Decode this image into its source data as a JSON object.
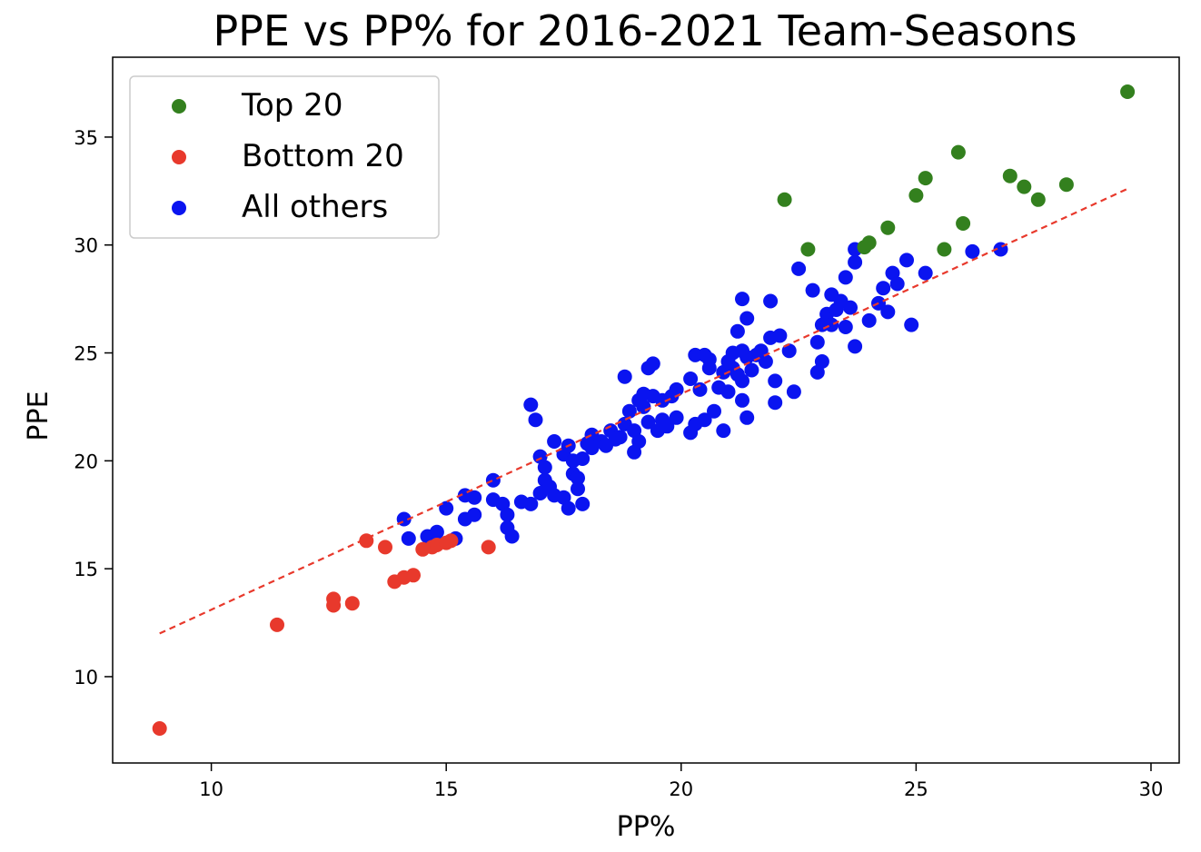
{
  "chart_data": {
    "type": "scatter",
    "title": "PPE vs PP% for 2016-2021 Team-Seasons",
    "xlabel": "PP%",
    "ylabel": "PPE",
    "xlim": [
      7.9,
      30.6
    ],
    "ylim": [
      6.0,
      38.7
    ],
    "xticks": [
      10,
      15,
      20,
      25,
      30
    ],
    "yticks": [
      10,
      15,
      20,
      25,
      30,
      35
    ],
    "grid": false,
    "legend_position": "top-left",
    "series": [
      {
        "name": "Top 20",
        "color": "#33801e",
        "points": [
          [
            22.2,
            32.1
          ],
          [
            22.7,
            29.8
          ],
          [
            23.9,
            29.9
          ],
          [
            24.0,
            30.1
          ],
          [
            24.4,
            30.8
          ],
          [
            25.0,
            32.3
          ],
          [
            25.2,
            33.1
          ],
          [
            25.6,
            29.8
          ],
          [
            25.9,
            34.3
          ],
          [
            26.0,
            31.0
          ],
          [
            27.0,
            33.2
          ],
          [
            27.3,
            32.7
          ],
          [
            27.6,
            32.1
          ],
          [
            28.2,
            32.8
          ],
          [
            29.5,
            37.1
          ]
        ]
      },
      {
        "name": "Bottom 20",
        "color": "#e8392c",
        "points": [
          [
            8.9,
            7.6
          ],
          [
            11.4,
            12.4
          ],
          [
            12.6,
            13.6
          ],
          [
            12.6,
            13.3
          ],
          [
            13.0,
            13.4
          ],
          [
            13.3,
            16.3
          ],
          [
            13.7,
            16.0
          ],
          [
            13.9,
            14.4
          ],
          [
            14.1,
            14.6
          ],
          [
            14.3,
            14.7
          ],
          [
            14.5,
            15.9
          ],
          [
            14.7,
            16.0
          ],
          [
            14.8,
            16.1
          ],
          [
            15.0,
            16.2
          ],
          [
            15.1,
            16.3
          ],
          [
            15.9,
            16.0
          ]
        ]
      },
      {
        "name": "All others",
        "color": "#0a14f0",
        "points": [
          [
            14.1,
            17.3
          ],
          [
            14.2,
            16.4
          ],
          [
            14.6,
            16.5
          ],
          [
            14.8,
            16.7
          ],
          [
            15.0,
            17.8
          ],
          [
            15.2,
            16.4
          ],
          [
            15.4,
            17.3
          ],
          [
            15.4,
            18.4
          ],
          [
            15.6,
            17.5
          ],
          [
            15.6,
            18.3
          ],
          [
            16.0,
            19.1
          ],
          [
            16.0,
            18.2
          ],
          [
            16.2,
            18.0
          ],
          [
            16.3,
            17.5
          ],
          [
            16.3,
            16.9
          ],
          [
            16.4,
            16.5
          ],
          [
            16.6,
            18.1
          ],
          [
            16.8,
            18.0
          ],
          [
            16.8,
            22.6
          ],
          [
            16.9,
            21.9
          ],
          [
            17.0,
            18.5
          ],
          [
            17.0,
            20.2
          ],
          [
            17.1,
            19.7
          ],
          [
            17.1,
            19.1
          ],
          [
            17.2,
            18.8
          ],
          [
            17.3,
            20.9
          ],
          [
            17.3,
            18.4
          ],
          [
            17.5,
            18.3
          ],
          [
            17.5,
            20.3
          ],
          [
            17.6,
            20.7
          ],
          [
            17.6,
            17.8
          ],
          [
            17.7,
            19.4
          ],
          [
            17.7,
            20.0
          ],
          [
            17.8,
            19.2
          ],
          [
            17.8,
            18.7
          ],
          [
            17.9,
            18.0
          ],
          [
            17.9,
            20.1
          ],
          [
            18.0,
            20.8
          ],
          [
            18.1,
            21.2
          ],
          [
            18.1,
            20.6
          ],
          [
            18.3,
            20.9
          ],
          [
            18.4,
            20.7
          ],
          [
            18.5,
            21.4
          ],
          [
            18.6,
            21.0
          ],
          [
            18.7,
            21.1
          ],
          [
            18.8,
            23.9
          ],
          [
            18.8,
            21.7
          ],
          [
            18.9,
            22.3
          ],
          [
            19.0,
            20.4
          ],
          [
            19.0,
            21.4
          ],
          [
            19.1,
            22.8
          ],
          [
            19.1,
            20.9
          ],
          [
            19.2,
            23.1
          ],
          [
            19.2,
            22.5
          ],
          [
            19.3,
            24.3
          ],
          [
            19.3,
            21.8
          ],
          [
            19.4,
            23.0
          ],
          [
            19.4,
            24.5
          ],
          [
            19.5,
            21.4
          ],
          [
            19.6,
            22.8
          ],
          [
            19.6,
            21.9
          ],
          [
            19.7,
            21.6
          ],
          [
            19.8,
            23.0
          ],
          [
            19.9,
            23.3
          ],
          [
            19.9,
            22.0
          ],
          [
            20.2,
            21.3
          ],
          [
            20.2,
            23.8
          ],
          [
            20.3,
            24.9
          ],
          [
            20.3,
            21.7
          ],
          [
            20.4,
            23.3
          ],
          [
            20.5,
            24.9
          ],
          [
            20.5,
            21.9
          ],
          [
            20.6,
            24.3
          ],
          [
            20.6,
            24.7
          ],
          [
            20.7,
            22.3
          ],
          [
            20.8,
            23.4
          ],
          [
            20.9,
            21.4
          ],
          [
            20.9,
            24.1
          ],
          [
            21.0,
            24.6
          ],
          [
            21.0,
            23.2
          ],
          [
            21.1,
            25.0
          ],
          [
            21.1,
            24.3
          ],
          [
            21.2,
            24.0
          ],
          [
            21.2,
            26.0
          ],
          [
            21.3,
            25.1
          ],
          [
            21.3,
            22.8
          ],
          [
            21.3,
            23.7
          ],
          [
            21.4,
            24.8
          ],
          [
            21.4,
            26.6
          ],
          [
            21.3,
            27.5
          ],
          [
            21.4,
            22.0
          ],
          [
            21.5,
            24.2
          ],
          [
            21.6,
            24.9
          ],
          [
            21.7,
            25.1
          ],
          [
            21.8,
            24.6
          ],
          [
            21.9,
            27.4
          ],
          [
            21.9,
            25.7
          ],
          [
            22.0,
            22.7
          ],
          [
            22.0,
            23.7
          ],
          [
            22.1,
            25.8
          ],
          [
            22.3,
            25.1
          ],
          [
            22.4,
            23.2
          ],
          [
            22.5,
            28.9
          ],
          [
            22.8,
            27.9
          ],
          [
            22.9,
            24.1
          ],
          [
            22.9,
            25.5
          ],
          [
            23.0,
            26.3
          ],
          [
            23.0,
            24.6
          ],
          [
            23.1,
            26.8
          ],
          [
            23.2,
            26.3
          ],
          [
            23.2,
            27.7
          ],
          [
            23.3,
            27.0
          ],
          [
            23.4,
            27.4
          ],
          [
            23.5,
            26.2
          ],
          [
            23.5,
            28.5
          ],
          [
            23.6,
            27.1
          ],
          [
            23.7,
            29.2
          ],
          [
            23.7,
            25.3
          ],
          [
            23.7,
            29.8
          ],
          [
            24.0,
            26.5
          ],
          [
            24.2,
            27.3
          ],
          [
            24.3,
            28.0
          ],
          [
            24.4,
            26.9
          ],
          [
            24.5,
            28.7
          ],
          [
            24.6,
            28.2
          ],
          [
            24.8,
            29.3
          ],
          [
            24.9,
            26.3
          ],
          [
            25.2,
            28.7
          ],
          [
            26.2,
            29.7
          ],
          [
            26.8,
            29.8
          ]
        ]
      }
    ],
    "trendline": {
      "style": "dashed",
      "color": "#e8392c",
      "points": [
        [
          8.9,
          12.0
        ],
        [
          29.5,
          32.6
        ]
      ]
    }
  }
}
